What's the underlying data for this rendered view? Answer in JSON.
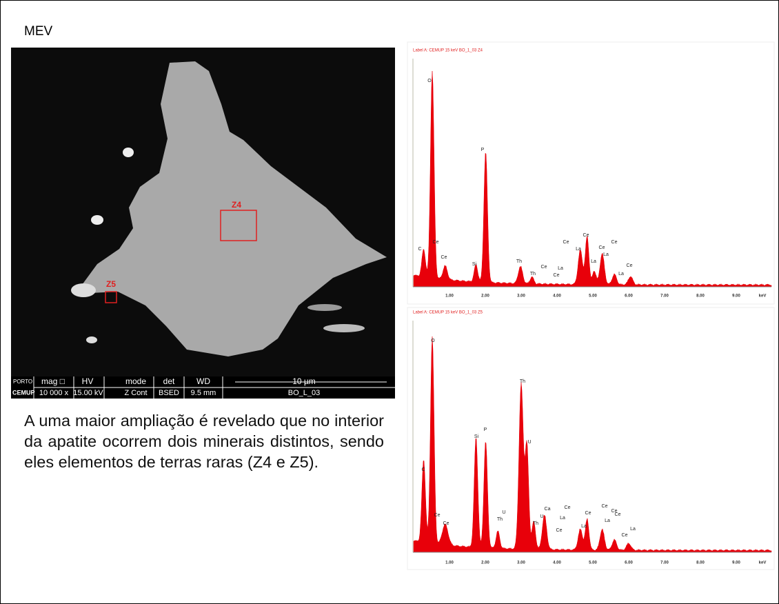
{
  "header": {
    "title": "MEV"
  },
  "image": {
    "markers": [
      "Z4",
      "Z5"
    ],
    "info_bar": {
      "logo": [
        "PORTO",
        "CEMUP"
      ],
      "headers": [
        "mag □",
        "HV",
        "mode",
        "det",
        "WD",
        "10 µm"
      ],
      "values": [
        "10 000 x",
        "15.00 kV",
        "Z Cont",
        "BSED",
        "9.5 mm",
        "BO_L_03"
      ]
    }
  },
  "text": "A uma maior ampliação é revelado que no interior da apatite ocorrem dois minerais distintos, sendo eles elementos de terras raras (Z4 e Z5).",
  "spectra": [
    {
      "label": "Label A: CEMUP    15 keV   BO_1_03 Z4",
      "x_ticks": [
        "1.00",
        "2.00",
        "3.00",
        "4.00",
        "5.00",
        "6.00",
        "7.00",
        "8.00",
        "9.00",
        "keV"
      ],
      "peak_labels": [
        "O",
        "P",
        "C",
        "Ce",
        "Ce",
        "Si",
        "Th",
        "Th",
        "Ce",
        "Ce",
        "La",
        "Ce",
        "La",
        "Ce",
        "Ce",
        "La",
        "Ce",
        "La",
        "Ce",
        "La"
      ]
    },
    {
      "label": "Label A: CEMUP    15 keV   BO_1_03 Z5",
      "x_ticks": [
        "1.00",
        "2.00",
        "3.00",
        "4.00",
        "5.00",
        "6.00",
        "7.00",
        "8.00",
        "9.00",
        "keV"
      ],
      "peak_labels": [
        "O",
        "C",
        "Ce",
        "Ce",
        "Si",
        "P",
        "Th",
        "U",
        "U",
        "Th",
        "Ca",
        "U",
        "Th",
        "Ce",
        "La",
        "Ce",
        "Ce",
        "La",
        "Ce",
        "La",
        "Ce",
        "Ce",
        "La",
        "Ce"
      ]
    }
  ]
}
